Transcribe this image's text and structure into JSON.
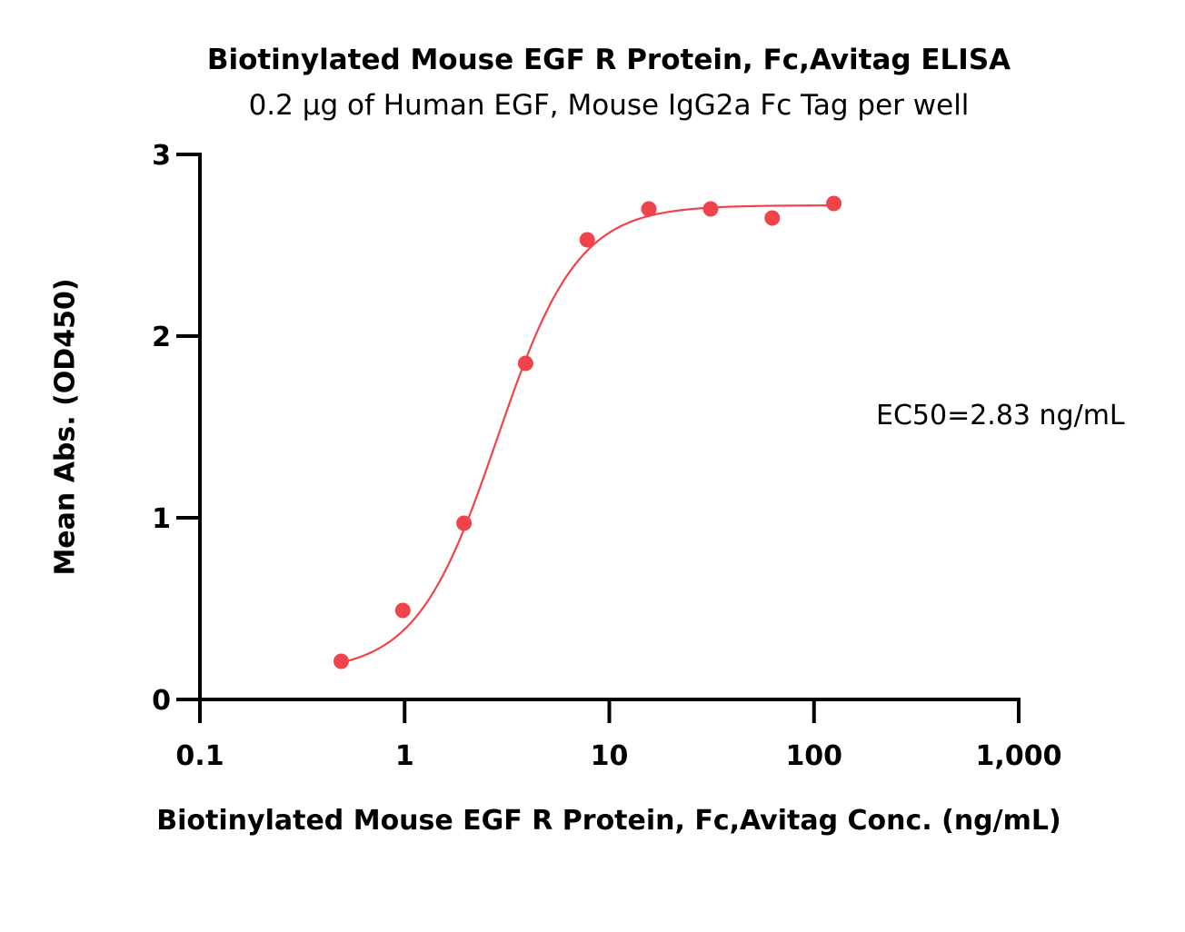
{
  "chart_data": {
    "type": "scatter",
    "title": "Biotinylated Mouse EGF R Protein, Fc,Avitag  ELISA",
    "subtitle": "0.2 μg of Human EGF, Mouse IgG2a Fc Tag per well",
    "xlabel": "Biotinylated Mouse EGF R Protein, Fc,Avitag  Conc. (ng/mL)",
    "ylabel": "Mean Abs. (OD450)",
    "xscale": "log",
    "xlim": [
      0.1,
      1000
    ],
    "ylim": [
      0,
      3
    ],
    "x_ticks": [
      {
        "value": 0.1,
        "label": "0.1"
      },
      {
        "value": 1,
        "label": "1"
      },
      {
        "value": 10,
        "label": "10"
      },
      {
        "value": 100,
        "label": "100"
      },
      {
        "value": 1000,
        "label": "1,000"
      }
    ],
    "y_ticks": [
      {
        "value": 0,
        "label": "0"
      },
      {
        "value": 1,
        "label": "1"
      },
      {
        "value": 2,
        "label": "2"
      },
      {
        "value": 3,
        "label": "3"
      }
    ],
    "series": [
      {
        "name": "Mean Abs. (OD450)",
        "color": "#f0434a",
        "x": [
          0.49,
          0.98,
          1.95,
          3.9,
          7.8,
          15.6,
          31.25,
          62.5,
          125
        ],
        "y": [
          0.21,
          0.49,
          0.97,
          1.85,
          2.53,
          2.7,
          2.7,
          2.65,
          2.73
        ]
      }
    ],
    "fit": {
      "model": "4PL",
      "bottom": 0.15,
      "top": 2.72,
      "ec50": 2.83,
      "hill": 2.2,
      "x_range": [
        0.49,
        125
      ],
      "color": "#f0434a"
    },
    "annotation": "EC50=2.83 ng/mL",
    "grid": false,
    "legend": "none"
  }
}
